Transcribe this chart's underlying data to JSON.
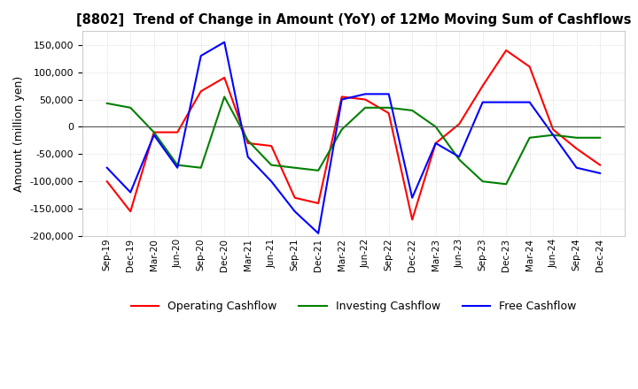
{
  "title": "[8802]  Trend of Change in Amount (YoY) of 12Mo Moving Sum of Cashflows",
  "ylabel": "Amount (million yen)",
  "ylim": [
    -200000,
    175000
  ],
  "yticks": [
    -200000,
    -150000,
    -100000,
    -50000,
    0,
    50000,
    100000,
    150000
  ],
  "background_color": "#ffffff",
  "grid_color": "#c8c8c8",
  "x_labels": [
    "Sep-19",
    "Dec-19",
    "Mar-20",
    "Jun-20",
    "Sep-20",
    "Dec-20",
    "Mar-21",
    "Jun-21",
    "Sep-21",
    "Dec-21",
    "Mar-22",
    "Jun-22",
    "Sep-22",
    "Dec-22",
    "Mar-23",
    "Jun-23",
    "Sep-23",
    "Dec-23",
    "Mar-24",
    "Jun-24",
    "Sep-24",
    "Dec-24"
  ],
  "operating": [
    -100000,
    -155000,
    -10000,
    -10000,
    65000,
    90000,
    -30000,
    -35000,
    -130000,
    -140000,
    55000,
    50000,
    25000,
    -170000,
    -30000,
    5000,
    75000,
    140000,
    110000,
    -5000,
    -40000,
    -70000
  ],
  "investing": [
    43000,
    35000,
    -10000,
    -70000,
    -75000,
    55000,
    -25000,
    -70000,
    -75000,
    -80000,
    -5000,
    35000,
    35000,
    30000,
    0,
    -60000,
    -100000,
    -105000,
    -20000,
    -15000,
    -20000,
    -20000
  ],
  "free": [
    -75000,
    -120000,
    -15000,
    -75000,
    130000,
    155000,
    -55000,
    -100000,
    -155000,
    -195000,
    50000,
    60000,
    60000,
    -130000,
    -30000,
    -55000,
    45000,
    45000,
    45000,
    -15000,
    -75000,
    -85000
  ],
  "operating_color": "#ff0000",
  "investing_color": "#008000",
  "free_color": "#0000ff",
  "line_width": 1.5
}
